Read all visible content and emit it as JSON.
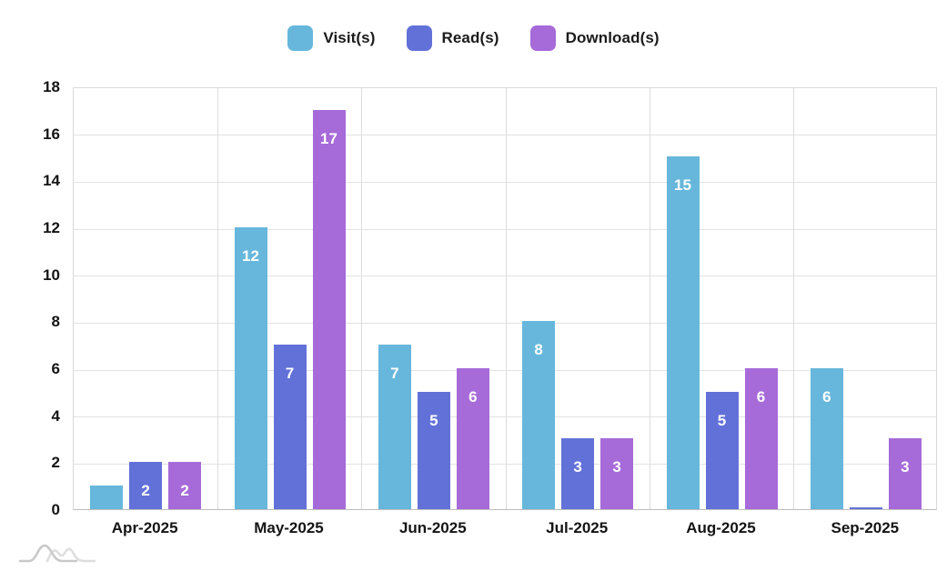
{
  "legend": {
    "items": [
      {
        "label": "Visit(s)",
        "color": "#67B7DC"
      },
      {
        "label": "Read(s)",
        "color": "#6271D8"
      },
      {
        "label": "Download(s)",
        "color": "#A76AD9"
      }
    ]
  },
  "chart_data": {
    "type": "bar",
    "title": "",
    "xlabel": "",
    "ylabel": "",
    "categories": [
      "Apr-2025",
      "May-2025",
      "Jun-2025",
      "Jul-2025",
      "Aug-2025",
      "Sep-2025"
    ],
    "series": [
      {
        "name": "Visit(s)",
        "color": "#67B7DC",
        "values": [
          1,
          12,
          7,
          8,
          15,
          6
        ]
      },
      {
        "name": "Read(s)",
        "color": "#6271D8",
        "values": [
          2,
          7,
          5,
          3,
          5,
          0
        ]
      },
      {
        "name": "Download(s)",
        "color": "#A76AD9",
        "values": [
          2,
          17,
          6,
          3,
          6,
          3
        ]
      }
    ],
    "ylim": [
      0,
      18
    ],
    "yticks": [
      0,
      2,
      4,
      6,
      8,
      10,
      12,
      14,
      16,
      18
    ],
    "grid": true,
    "legend_position": "top",
    "bar_label_color": "#FFFFFF",
    "bar_label_min_value": 2
  },
  "icons": {
    "watermark": "curves-logo"
  },
  "watermark_colors": {
    "primary": "#c9c9c9",
    "secondary": "#dedede"
  }
}
